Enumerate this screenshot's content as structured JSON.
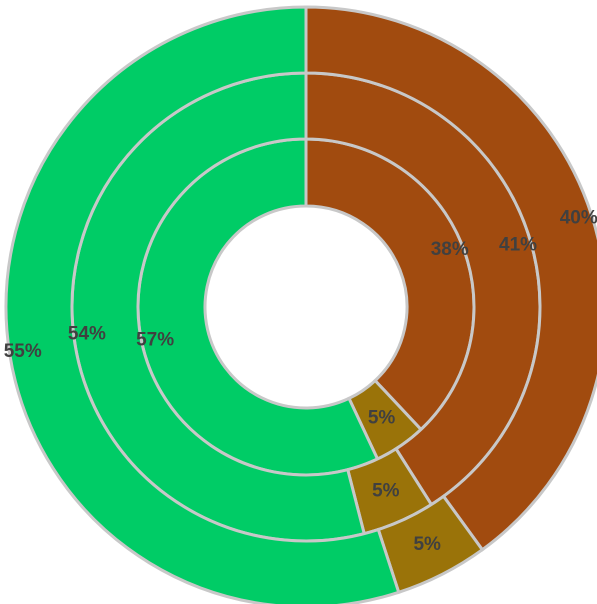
{
  "chart_data": {
    "type": "doughnut",
    "title": "",
    "legend": "none",
    "series": [
      {
        "ring": "inner",
        "values": [
          38,
          5,
          57
        ],
        "labels": [
          "38%",
          "5%",
          "57%"
        ]
      },
      {
        "ring": "middle",
        "values": [
          41,
          5,
          54
        ],
        "labels": [
          "41%",
          "5%",
          "54%"
        ]
      },
      {
        "ring": "outer",
        "values": [
          40,
          5,
          55
        ],
        "labels": [
          "40%",
          "5%",
          "55%"
        ]
      }
    ],
    "colors": [
      "#A14B0F",
      "#9A7309",
      "#00CC66"
    ],
    "border_color": "#C8C8C8"
  }
}
